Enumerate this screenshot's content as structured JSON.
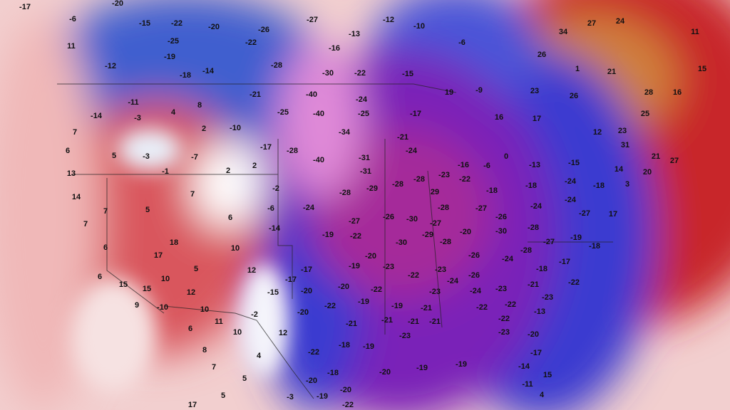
{
  "map": {
    "labels": [
      -17,
      -20,
      -6,
      -15,
      -22,
      -20,
      -26,
      -27,
      -13,
      -12,
      -10,
      -6,
      27,
      24,
      34,
      11,
      11,
      -25,
      -22,
      -16,
      -19,
      -12,
      -28,
      -30,
      -22,
      -15,
      26,
      1,
      21,
      15,
      -18,
      -14,
      23,
      26,
      28,
      16,
      -21,
      -40,
      -24,
      19,
      -9,
      -11,
      8,
      -14,
      -3,
      4,
      -25,
      -40,
      -25,
      -17,
      17,
      25,
      16,
      -10,
      2,
      -34,
      -21,
      12,
      23,
      7,
      -17,
      31,
      6,
      5,
      -3,
      -7,
      -28,
      -24,
      0,
      -6,
      -13,
      -15,
      27,
      21,
      -40,
      -31,
      2,
      -16,
      13,
      -1,
      2,
      -31,
      -23,
      -28,
      -22,
      14,
      20,
      14,
      7,
      -2,
      -28,
      -29,
      -28,
      29,
      -18,
      -18,
      -24,
      -18,
      3,
      5,
      7,
      -24,
      -6,
      -28,
      -27,
      -26,
      -24,
      -24,
      6,
      -27,
      -26,
      -30,
      -27,
      -27,
      17,
      7,
      -14,
      -19,
      -22,
      -20,
      -30,
      -28,
      -19,
      -29,
      -27,
      6,
      18,
      10,
      -30,
      -28,
      -28,
      -18,
      -26,
      -24,
      -17,
      17,
      5,
      12,
      -20,
      -17,
      -19,
      -23,
      -23,
      -26,
      -18,
      6,
      10,
      -17,
      -22,
      -24,
      -21,
      -22,
      15,
      15,
      12,
      -20,
      -22,
      -24,
      -23,
      -15,
      -20,
      -23,
      -23,
      9,
      -10,
      -22,
      -19,
      -21,
      -19,
      -22,
      -22,
      10,
      -20,
      -2,
      -21,
      -21,
      -22,
      11,
      -21,
      -21,
      -13,
      6,
      10,
      12,
      -23,
      -23,
      -20,
      8,
      -18,
      -19,
      4,
      -22,
      -17,
      7,
      5,
      -20,
      -18,
      -20,
      -19,
      -19,
      -14,
      15,
      -20,
      -3,
      -19,
      -11,
      4,
      17,
      5,
      -22
    ]
  }
}
